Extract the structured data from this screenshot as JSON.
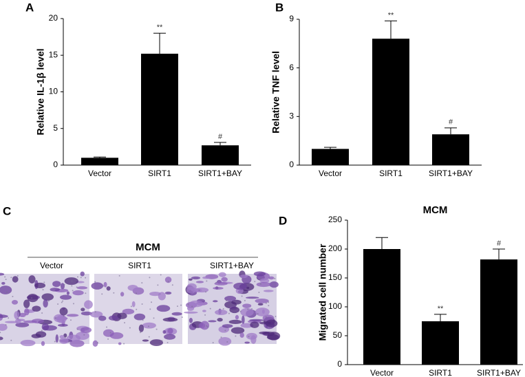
{
  "chart_data": [
    {
      "type": "bar",
      "label": "A",
      "y_label": "Relative IL-1β level",
      "categories": [
        "Vector",
        "SIRT1",
        "SIRT1+BAY"
      ],
      "values": [
        1.0,
        15.2,
        2.7
      ],
      "errors": [
        0.1,
        2.8,
        0.4
      ],
      "annotations": [
        null,
        "**",
        "#"
      ],
      "color": "#000000",
      "ylim": [
        0,
        20
      ],
      "yticks": [
        0,
        5,
        10,
        15,
        20
      ]
    },
    {
      "type": "bar",
      "label": "B",
      "y_label": "Relative TNF level",
      "categories": [
        "Vector",
        "SIRT1",
        "SIRT1+BAY"
      ],
      "values": [
        1.0,
        7.8,
        1.9
      ],
      "errors": [
        0.1,
        1.1,
        0.4
      ],
      "annotations": [
        null,
        "**",
        "#"
      ],
      "color": "#000000",
      "ylim": [
        0,
        9
      ],
      "yticks": [
        0,
        3,
        6,
        9
      ]
    },
    {
      "type": "bar",
      "label": "D",
      "title": "MCM",
      "y_label": "Migrated cell number",
      "categories": [
        "Vector",
        "SIRT1",
        "SIRT1+BAY"
      ],
      "values": [
        200,
        75,
        182
      ],
      "errors": [
        20,
        12,
        18
      ],
      "annotations": [
        null,
        "**",
        "#"
      ],
      "color": "#000000",
      "ylim": [
        0,
        250
      ],
      "yticks": [
        0,
        50,
        100,
        150,
        200,
        250
      ]
    }
  ],
  "image_panel": {
    "label": "C",
    "title": "MCM",
    "columns": [
      "Vector",
      "SIRT1",
      "SIRT1+BAY"
    ]
  }
}
